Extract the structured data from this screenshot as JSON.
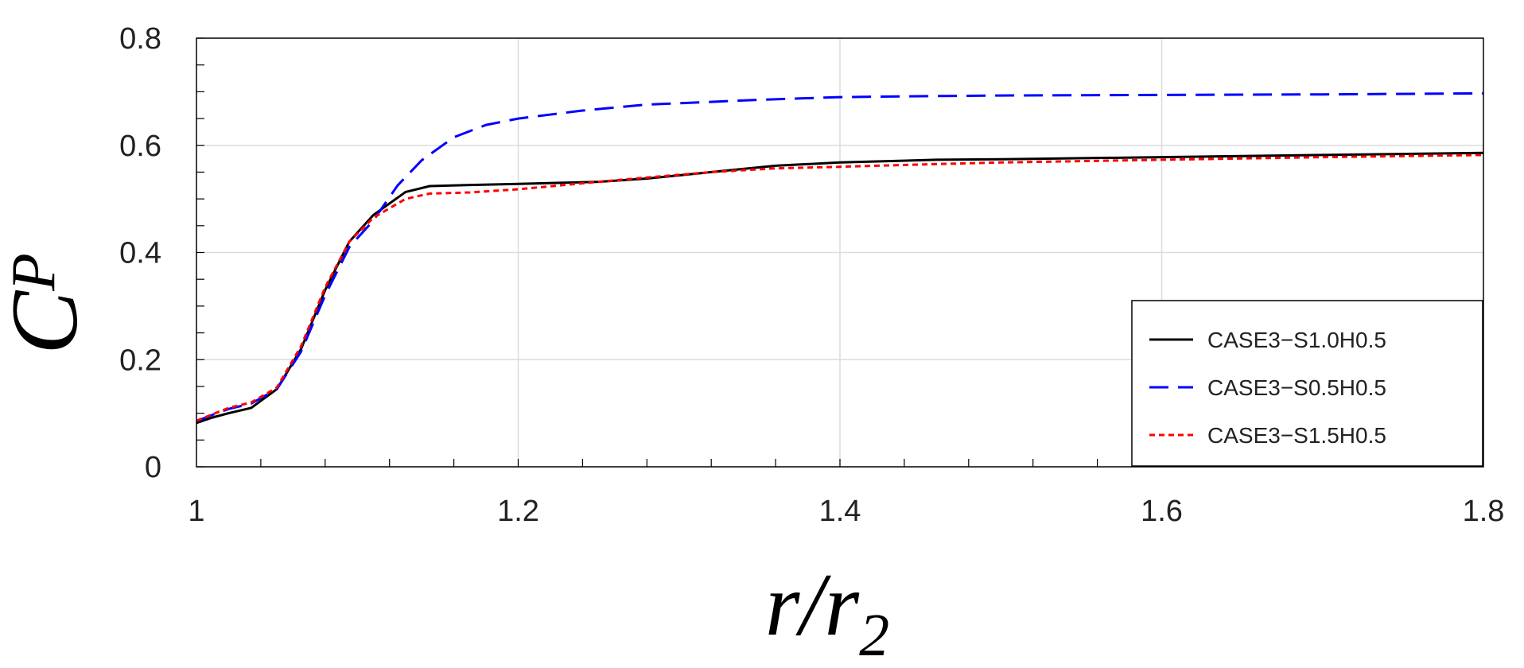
{
  "chart_data": {
    "type": "line",
    "xlabel": {
      "main": "r/r",
      "sub": "2"
    },
    "ylabel": {
      "main": "C",
      "sub": "P"
    },
    "xlim": [
      1,
      1.8
    ],
    "ylim": [
      0,
      0.8
    ],
    "xticks": [
      1,
      1.2,
      1.4,
      1.6,
      1.8
    ],
    "yticks": [
      0,
      0.2,
      0.4,
      0.6,
      0.8
    ],
    "xtick_labels": [
      "1",
      "1.2",
      "1.4",
      "1.6",
      "1.8"
    ],
    "ytick_labels": [
      "0",
      "0.2",
      "0.4",
      "0.6",
      "0.8"
    ],
    "grid": true,
    "legend_position": "bottom-right",
    "series": [
      {
        "name": "CASE3−S1.0H0.5",
        "color": "#000000",
        "dash": "solid",
        "x": [
          1.0,
          1.01,
          1.02,
          1.034,
          1.05,
          1.065,
          1.08,
          1.095,
          1.11,
          1.13,
          1.145,
          1.17,
          1.2,
          1.25,
          1.28,
          1.32,
          1.36,
          1.4,
          1.46,
          1.5,
          1.6,
          1.7,
          1.8
        ],
        "y": [
          0.082,
          0.092,
          0.1,
          0.11,
          0.145,
          0.22,
          0.33,
          0.42,
          0.47,
          0.513,
          0.524,
          0.526,
          0.528,
          0.532,
          0.538,
          0.55,
          0.562,
          0.568,
          0.573,
          0.574,
          0.578,
          0.582,
          0.586
        ]
      },
      {
        "name": "CASE3−S0.5H0.5",
        "color": "#0000ff",
        "dash": "dash",
        "x": [
          1.0,
          1.01,
          1.02,
          1.034,
          1.05,
          1.065,
          1.08,
          1.095,
          1.11,
          1.125,
          1.14,
          1.16,
          1.18,
          1.2,
          1.24,
          1.28,
          1.35,
          1.4,
          1.46,
          1.5,
          1.6,
          1.7,
          1.8
        ],
        "y": [
          0.085,
          0.097,
          0.108,
          0.118,
          0.145,
          0.215,
          0.32,
          0.41,
          0.46,
          0.525,
          0.572,
          0.615,
          0.638,
          0.65,
          0.665,
          0.676,
          0.685,
          0.69,
          0.692,
          0.693,
          0.694,
          0.695,
          0.697
        ]
      },
      {
        "name": "CASE3−S1.5H0.5",
        "color": "#ff0000",
        "dash": "dot",
        "x": [
          1.0,
          1.01,
          1.02,
          1.034,
          1.05,
          1.065,
          1.08,
          1.095,
          1.11,
          1.13,
          1.145,
          1.17,
          1.2,
          1.25,
          1.28,
          1.32,
          1.36,
          1.4,
          1.46,
          1.5,
          1.6,
          1.7,
          1.8
        ],
        "y": [
          0.086,
          0.098,
          0.11,
          0.12,
          0.148,
          0.225,
          0.335,
          0.42,
          0.465,
          0.5,
          0.51,
          0.512,
          0.518,
          0.532,
          0.54,
          0.55,
          0.557,
          0.56,
          0.565,
          0.568,
          0.573,
          0.578,
          0.582
        ]
      }
    ]
  }
}
